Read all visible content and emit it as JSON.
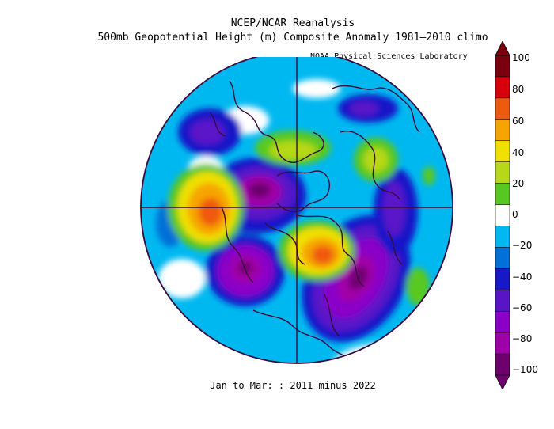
{
  "header": {
    "title": "NCEP/NCAR Reanalysis",
    "subtitle": "500mb Geopotential Height (m) Composite Anomaly 1981–2010 climo",
    "credit": "NOAA Physical Sciences Laboratory"
  },
  "footer": {
    "period": "Jan to Mar: : 2011 minus 2022"
  },
  "colorbar": {
    "labels": [
      "100",
      "80",
      "60",
      "40",
      "20",
      "0",
      "−20",
      "−40",
      "−60",
      "−80",
      "−100"
    ],
    "colors": [
      "#7a0010",
      "#d8000a",
      "#f05a10",
      "#f6a400",
      "#f0e000",
      "#b6d818",
      "#58c820",
      "#ffffff",
      "#00b8f0",
      "#0070d8",
      "#1818c8",
      "#5a14c8",
      "#8a00c8",
      "#a000a8",
      "#6e006e"
    ]
  }
}
